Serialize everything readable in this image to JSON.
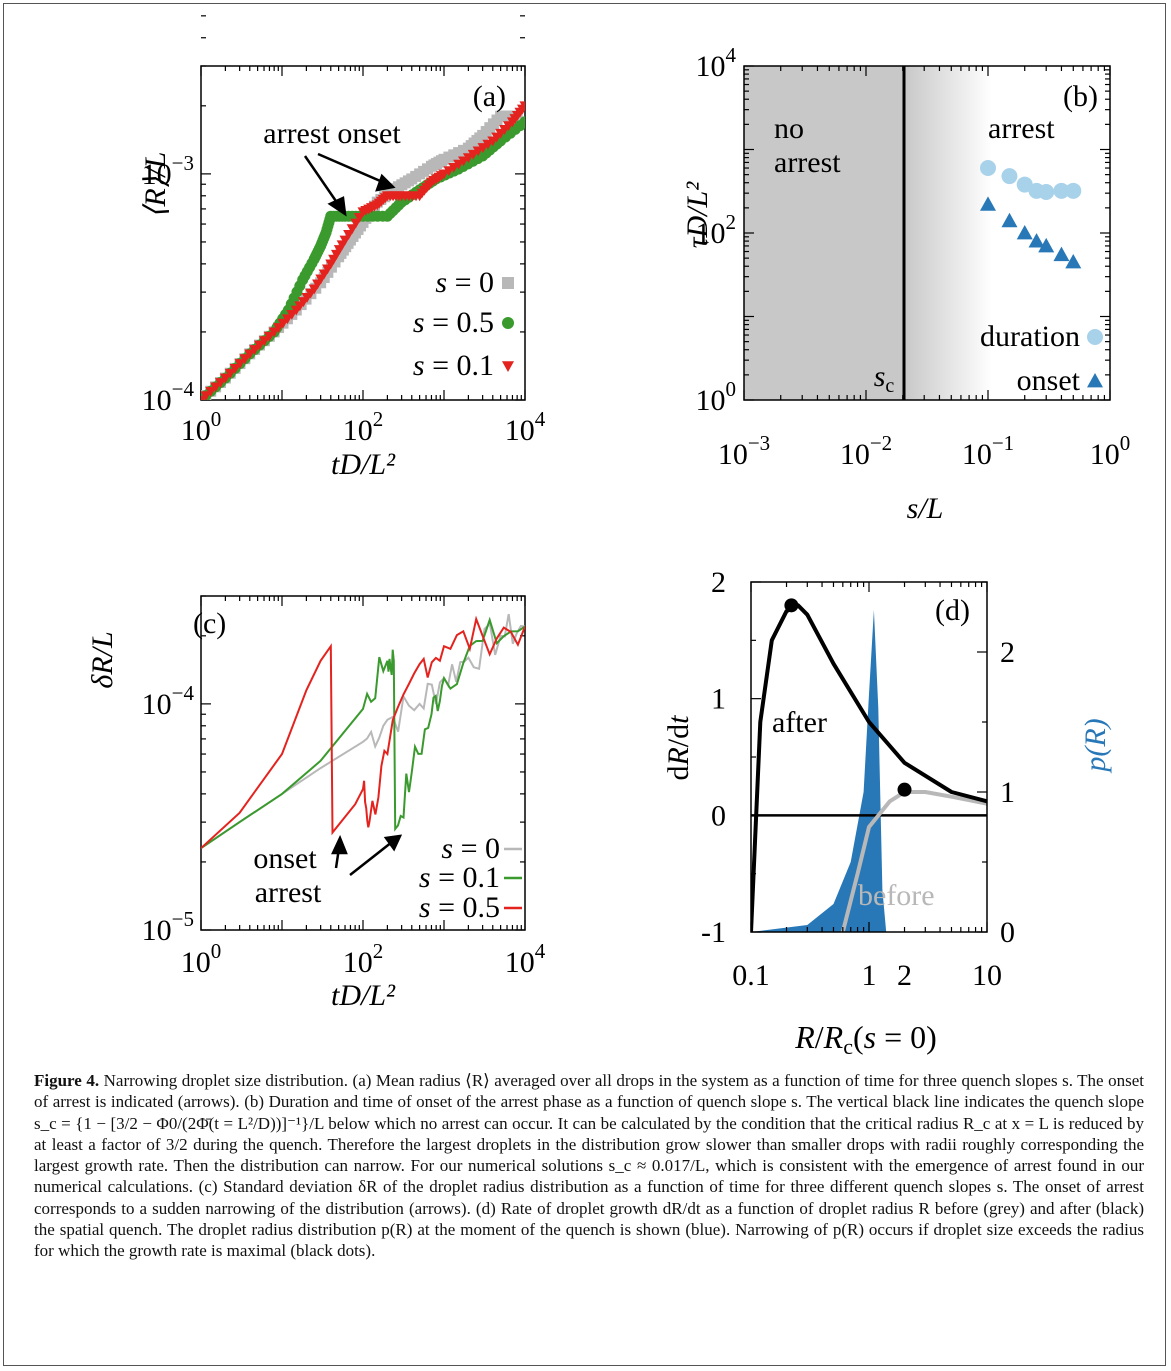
{
  "caption": {
    "label": "Figure 4.",
    "text": "Narrowing droplet size distribution. (a) Mean radius ⟨R⟩ averaged over all drops in the system as a function of time for three quench slopes s. The onset of arrest is indicated (arrows). (b) Duration and time of onset of the arrest phase as a function of quench slope s. The vertical black line indicates the quench slope s_c = {1 − [3/2 − Φ0/(2Φ̄(t = L²/D))]⁻¹}/L below which no arrest can occur. It can be calculated by the condition that the critical radius R_c at x = L is reduced by at least a factor of 3/2 during the quench. Therefore the largest droplets in the distribution grow slower than smaller drops with radii roughly corresponding the largest growth rate. Then the distribution can narrow. For our numerical solutions s_c ≈ 0.017/L, which is consistent with the emergence of arrest found in our numerical calculations. (c) Standard deviation δR of the droplet radius distribution as a function of time for three different quench slopes s. The onset of arrest corresponds to a sudden narrowing of the distribution (arrows). (d) Rate of droplet growth dR/dt as a function of droplet radius R before (grey) and after (black) the spatial quench. The droplet radius distribution p(R) at the moment of the quench is shown (blue). Narrowing of p(R) occurs if droplet size exceeds the radius for which the growth rate is maximal (black dots)."
  },
  "colors": {
    "grey": "#b8b8b8",
    "green": "#3a9a2e",
    "red": "#e4231f",
    "lightblue": "#a8d2ea",
    "blue": "#2878b8"
  },
  "chart_data": [
    {
      "panel": "(a)",
      "type": "scatter",
      "xscale": "log",
      "yscale": "log",
      "xlabel": "tD/L²",
      "ylabel": "⟨R⟩/L",
      "xlim": [
        1,
        10000
      ],
      "ylim": [
        0.0001,
        0.003
      ],
      "xticks": [
        "10^0",
        "10^2",
        "10^4"
      ],
      "yticks": [
        "10^-4",
        "10^-3"
      ],
      "annotation": "arrest onset",
      "legend_position": "bottom-right",
      "series": [
        {
          "name": "s = 0",
          "marker": "square",
          "color": "#b8b8b8",
          "x": [
            1,
            2,
            4,
            8,
            15,
            30,
            50,
            70,
            100,
            150,
            250,
            400,
            700,
            1000,
            2000,
            3000,
            5000,
            8000
          ],
          "y": [
            0.0001,
            0.000125,
            0.00016,
            0.0002,
            0.00025,
            0.00033,
            0.00043,
            0.00051,
            0.00061,
            0.00075,
            0.00086,
            0.00095,
            0.00108,
            0.00116,
            0.0013,
            0.00148,
            0.0018,
            0.0018
          ]
        },
        {
          "name": "s = 0.5",
          "marker": "circle",
          "color": "#3a9a2e",
          "x": [
            1,
            2,
            4,
            8,
            12,
            18,
            25,
            30,
            35,
            40,
            60,
            100,
            200,
            300,
            500,
            800,
            1500,
            3000,
            5000,
            10000
          ],
          "y": [
            0.0001,
            0.000125,
            0.00016,
            0.0002,
            0.00025,
            0.00034,
            0.00042,
            0.00048,
            0.00055,
            0.00065,
            0.00065,
            0.00065,
            0.00065,
            0.00075,
            0.00085,
            0.00095,
            0.00105,
            0.0012,
            0.0014,
            0.0017
          ]
        },
        {
          "name": "s = 0.1",
          "marker": "triangle-down",
          "color": "#e4231f",
          "x": [
            1,
            2,
            4,
            8,
            15,
            25,
            40,
            60,
            100,
            150,
            200,
            300,
            500,
            700,
            1000,
            2000,
            4000,
            7000,
            10000
          ],
          "y": [
            0.0001,
            0.000125,
            0.00016,
            0.0002,
            0.00025,
            0.00031,
            0.0004,
            0.00051,
            0.00068,
            0.00073,
            0.0008,
            0.0008,
            0.0008,
            0.00092,
            0.001,
            0.00118,
            0.0014,
            0.0017,
            0.002
          ]
        }
      ]
    },
    {
      "panel": "(b)",
      "type": "scatter",
      "xscale": "log",
      "yscale": "log",
      "xlabel": "s/L",
      "ylabel": "τD/L²",
      "xlim": [
        0.001,
        1
      ],
      "ylim": [
        1,
        10000
      ],
      "xticks": [
        "10^-3",
        "10^-2",
        "10^-1",
        "10^0"
      ],
      "yticks": [
        "10^0",
        "10^2",
        "10^4"
      ],
      "region_labels": [
        "no arrest",
        "arrest"
      ],
      "vline_label": "s_c",
      "vline_x": 0.017,
      "legend_position": "bottom-right",
      "series": [
        {
          "name": "duration",
          "marker": "circle",
          "color": "#a8d2ea",
          "x": [
            0.1,
            0.15,
            0.2,
            0.25,
            0.3,
            0.4,
            0.5
          ],
          "y": [
            600,
            480,
            380,
            320,
            310,
            320,
            320
          ]
        },
        {
          "name": "onset",
          "marker": "triangle-up",
          "color": "#2878b8",
          "x": [
            0.1,
            0.15,
            0.2,
            0.25,
            0.3,
            0.4,
            0.5
          ],
          "y": [
            220,
            140,
            100,
            80,
            70,
            55,
            45
          ]
        }
      ]
    },
    {
      "panel": "(c)",
      "type": "line",
      "xscale": "log",
      "yscale": "log",
      "xlabel": "tD/L²",
      "ylabel": "δR/L",
      "xlim": [
        1,
        10000
      ],
      "ylim": [
        1e-05,
        0.0003
      ],
      "xticks": [
        "10^0",
        "10^2",
        "10^4"
      ],
      "yticks": [
        "10^-5",
        "10^-4"
      ],
      "annotations": [
        "onset",
        "arrest"
      ],
      "legend_position": "bottom-right",
      "series": [
        {
          "name": "s = 0",
          "color": "#b8b8b8",
          "x": [
            1,
            3,
            10,
            30,
            100,
            200,
            500,
            1000,
            2000,
            5000,
            10000
          ],
          "y": [
            2.3e-05,
            3e-05,
            4e-05,
            5.2e-05,
            6.8e-05,
            8.5e-05,
            0.0001,
            0.00013,
            0.00016,
            0.0002,
            0.00022
          ]
        },
        {
          "name": "s = 0.1",
          "color": "#3a9a2e",
          "x": [
            1,
            3,
            10,
            30,
            100,
            200,
            240,
            250,
            400,
            700,
            1000,
            3000,
            10000
          ],
          "y": [
            2.3e-05,
            3e-05,
            4e-05,
            5.6e-05,
            9.5e-05,
            0.000155,
            0.000155,
            2.8e-05,
            5e-05,
            9e-05,
            0.00013,
            0.00019,
            0.00022
          ]
        },
        {
          "name": "s = 0.5",
          "color": "#e4231f",
          "x": [
            1,
            3,
            10,
            20,
            30,
            40,
            42,
            80,
            100,
            120,
            200,
            500,
            1000,
            3000,
            10000
          ],
          "y": [
            2.3e-05,
            3.3e-05,
            6e-05,
            0.000115,
            0.000155,
            0.00018,
            2.7e-05,
            3.6e-05,
            4.2e-05,
            3e-05,
            6e-05,
            0.00015,
            0.00018,
            0.0002,
            0.00022
          ]
        }
      ]
    },
    {
      "panel": "(d)",
      "type": "line",
      "xscale": "log",
      "xlabel": "R/R_c(s = 0)",
      "ylabel": "dR/dt",
      "y2label": "p(R)",
      "xlim": [
        0.1,
        10
      ],
      "ylim": [
        -1,
        2
      ],
      "y2lim": [
        0,
        2.5
      ],
      "xticks": [
        "0.1",
        "1",
        "2",
        "10"
      ],
      "yticks": [
        "-1",
        "0",
        "1",
        "2"
      ],
      "y2ticks": [
        "0",
        "1",
        "2"
      ],
      "series": [
        {
          "name": "after",
          "color": "#000000",
          "x": [
            0.1,
            0.12,
            0.15,
            0.2,
            0.25,
            0.3,
            0.5,
            1,
            2,
            5,
            10
          ],
          "y": [
            -1,
            0.8,
            1.5,
            1.75,
            1.8,
            1.72,
            1.3,
            0.8,
            0.45,
            0.2,
            0.12
          ]
        },
        {
          "name": "before",
          "color": "#b8b8b8",
          "x": [
            0.6,
            0.8,
            1,
            1.5,
            2,
            3,
            5,
            10
          ],
          "y": [
            -1,
            -0.5,
            -0.1,
            0.12,
            0.2,
            0.2,
            0.16,
            0.1
          ]
        },
        {
          "name": "p(R)",
          "type": "area",
          "color": "#2878b8",
          "axis": "right",
          "x": [
            0.1,
            0.3,
            0.5,
            0.7,
            0.9,
            1.0,
            1.1,
            1.2,
            1.3,
            1.4
          ],
          "y": [
            0,
            0.05,
            0.2,
            0.5,
            1.0,
            1.7,
            2.3,
            1.6,
            0.3,
            0
          ]
        }
      ],
      "markers": [
        {
          "x": 0.22,
          "y": 1.8
        },
        {
          "x": 2.0,
          "y": 0.22
        }
      ]
    }
  ]
}
